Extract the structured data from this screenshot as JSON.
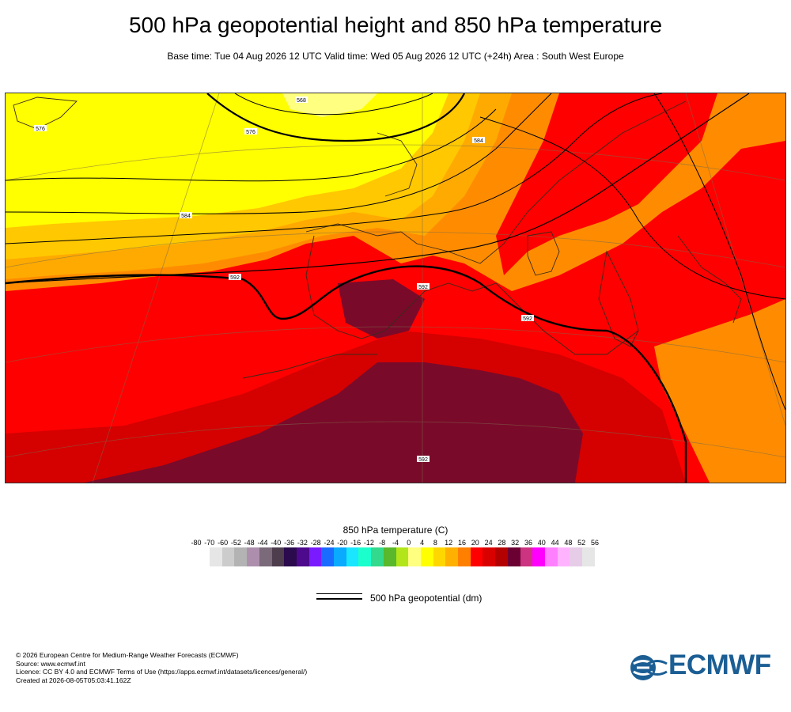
{
  "title": "500 hPa geopotential height and 850 hPa temperature",
  "subtitle": "Base time: Tue 04 Aug 2026 12 UTC Valid time: Wed 05 Aug 2026 12 UTC (+24h) Area : South West Europe",
  "map": {
    "area": "South West Europe",
    "contour_labels": [
      "576",
      "568",
      "576",
      "584",
      "584",
      "592",
      "592",
      "592",
      "592"
    ],
    "colors": {
      "ocean_warm": "#ff0000",
      "land_orange": "#ff8000",
      "yellow": "#ffff00",
      "yellow_orange": "#ffc800",
      "orange": "#ffaa00",
      "dark_red": "#cc0000",
      "maroon": "#8b0033"
    }
  },
  "colorbar": {
    "title": "850 hPa temperature (C)",
    "ticks": [
      "-80",
      "-70",
      "-60",
      "-52",
      "-48",
      "-44",
      "-40",
      "-36",
      "-32",
      "-28",
      "-24",
      "-20",
      "-16",
      "-12",
      "-8",
      "-4",
      "0",
      "4",
      "8",
      "12",
      "16",
      "20",
      "24",
      "28",
      "32",
      "36",
      "40",
      "44",
      "48",
      "52",
      "56"
    ],
    "colors": [
      "#e6e6e6",
      "#cccccc",
      "#b3b3b3",
      "#ad8fad",
      "#7a6a7a",
      "#4d3d4d",
      "#2b0a4d",
      "#4d0a8c",
      "#7a1aff",
      "#1a6bff",
      "#0aaaff",
      "#1ae6ff",
      "#1affcc",
      "#33d98c",
      "#59b82b",
      "#b3e61a",
      "#ffff80",
      "#ffff00",
      "#ffd700",
      "#ffb000",
      "#ff8000",
      "#ff0000",
      "#d90000",
      "#b30000",
      "#6b0033",
      "#cc3380",
      "#ff00ff",
      "#ff80ff",
      "#ffb3ff",
      "#e6cce6",
      "#e6e6e6"
    ]
  },
  "legend": {
    "label": "500 hPa geopotential (dm)"
  },
  "footer": [
    "© 2026 European Centre for Medium-Range Weather Forecasts (ECMWF)",
    "Source: www.ecmwf.int",
    "Licence: CC BY 4.0 and ECMWF Terms of Use (https://apps.ecmwf.int/datasets/licences/general/)",
    "Created at 2026-08-05T05:03:41.162Z"
  ],
  "logo": {
    "text": "ECMWF",
    "color": "#1b5e94"
  }
}
